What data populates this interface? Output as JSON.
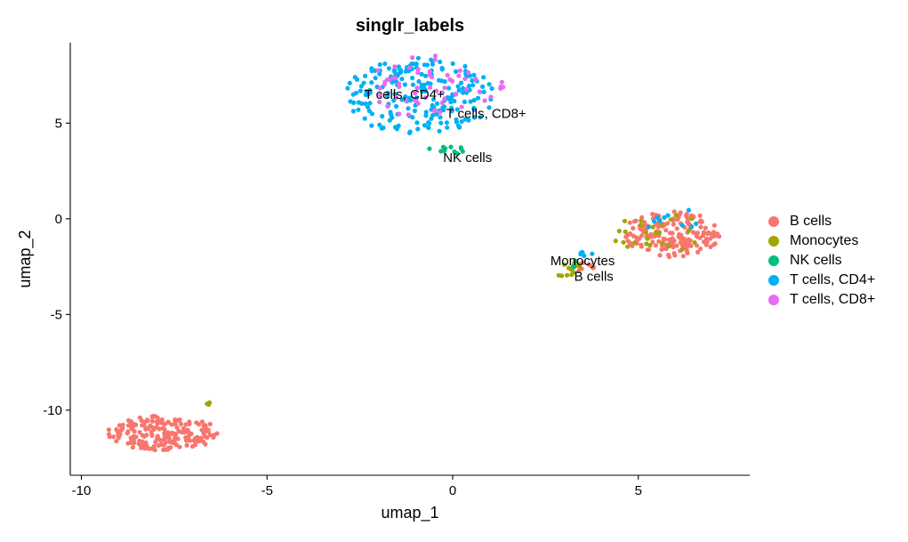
{
  "chart_data": {
    "type": "scatter",
    "title": "singlr_labels",
    "xlabel": "umap_1",
    "ylabel": "umap_2",
    "xlim": [
      -10.3,
      8.0
    ],
    "ylim": [
      -13.4,
      9.2
    ],
    "xticks": [
      -10,
      -5,
      0,
      5
    ],
    "xtick_labels": [
      "-10",
      "-5",
      "0",
      "5"
    ],
    "yticks": [
      -10,
      -5,
      0,
      5
    ],
    "ytick_labels": [
      "-10",
      "-5",
      "0",
      "5"
    ],
    "grid": false,
    "legend_position": "right",
    "series": [
      {
        "name": "B cells",
        "color": "#F8766D",
        "clusters": [
          {
            "cx": -7.8,
            "cy": -11.2,
            "rx": 1.5,
            "ry": 0.9,
            "n": 190,
            "seed": 11
          },
          {
            "cx": 5.9,
            "cy": -0.8,
            "rx": 1.3,
            "ry": 1.2,
            "n": 175,
            "seed": 12
          },
          {
            "cx": 3.5,
            "cy": -2.5,
            "rx": 0.4,
            "ry": 0.3,
            "n": 8,
            "seed": 13
          }
        ]
      },
      {
        "name": "Monocytes",
        "color": "#A3A500",
        "clusters": [
          {
            "cx": 5.6,
            "cy": -0.8,
            "rx": 1.3,
            "ry": 1.2,
            "n": 25,
            "seed": 21
          },
          {
            "cx": 3.0,
            "cy": -2.6,
            "rx": 0.5,
            "ry": 0.4,
            "n": 12,
            "seed": 22
          },
          {
            "cx": -6.55,
            "cy": -9.65,
            "rx": 0.1,
            "ry": 0.06,
            "n": 4,
            "seed": 23
          }
        ]
      },
      {
        "name": "NK cells",
        "color": "#00BF7D",
        "clusters": [
          {
            "cx": -0.2,
            "cy": 3.6,
            "rx": 0.5,
            "ry": 0.25,
            "n": 12,
            "seed": 31
          },
          {
            "cx": 3.3,
            "cy": -2.3,
            "rx": 0.3,
            "ry": 0.25,
            "n": 3,
            "seed": 32
          }
        ]
      },
      {
        "name": "T cells, CD4+",
        "color": "#00B0F6",
        "clusters": [
          {
            "cx": -0.9,
            "cy": 6.4,
            "rx": 2.0,
            "ry": 2.0,
            "n": 215,
            "seed": 41
          },
          {
            "cx": 5.8,
            "cy": 0.0,
            "rx": 0.9,
            "ry": 0.6,
            "n": 10,
            "seed": 42
          },
          {
            "cx": 3.5,
            "cy": -1.9,
            "rx": 0.3,
            "ry": 0.3,
            "n": 6,
            "seed": 43
          }
        ]
      },
      {
        "name": "T cells, CD8+",
        "color": "#E76BF3",
        "clusters": [
          {
            "cx": -0.4,
            "cy": 6.9,
            "rx": 1.9,
            "ry": 1.7,
            "n": 60,
            "seed": 51
          }
        ]
      }
    ],
    "annotations": [
      {
        "text": "T cells, CD4+",
        "x": -1.3,
        "y": 6.5
      },
      {
        "text": "T cells, CD8+",
        "x": 0.9,
        "y": 5.5
      },
      {
        "text": "NK cells",
        "x": 0.4,
        "y": 3.2
      },
      {
        "text": "Monocytes",
        "x": 3.5,
        "y": -2.2
      },
      {
        "text": "B cells",
        "x": 3.8,
        "y": -3.0
      }
    ]
  }
}
